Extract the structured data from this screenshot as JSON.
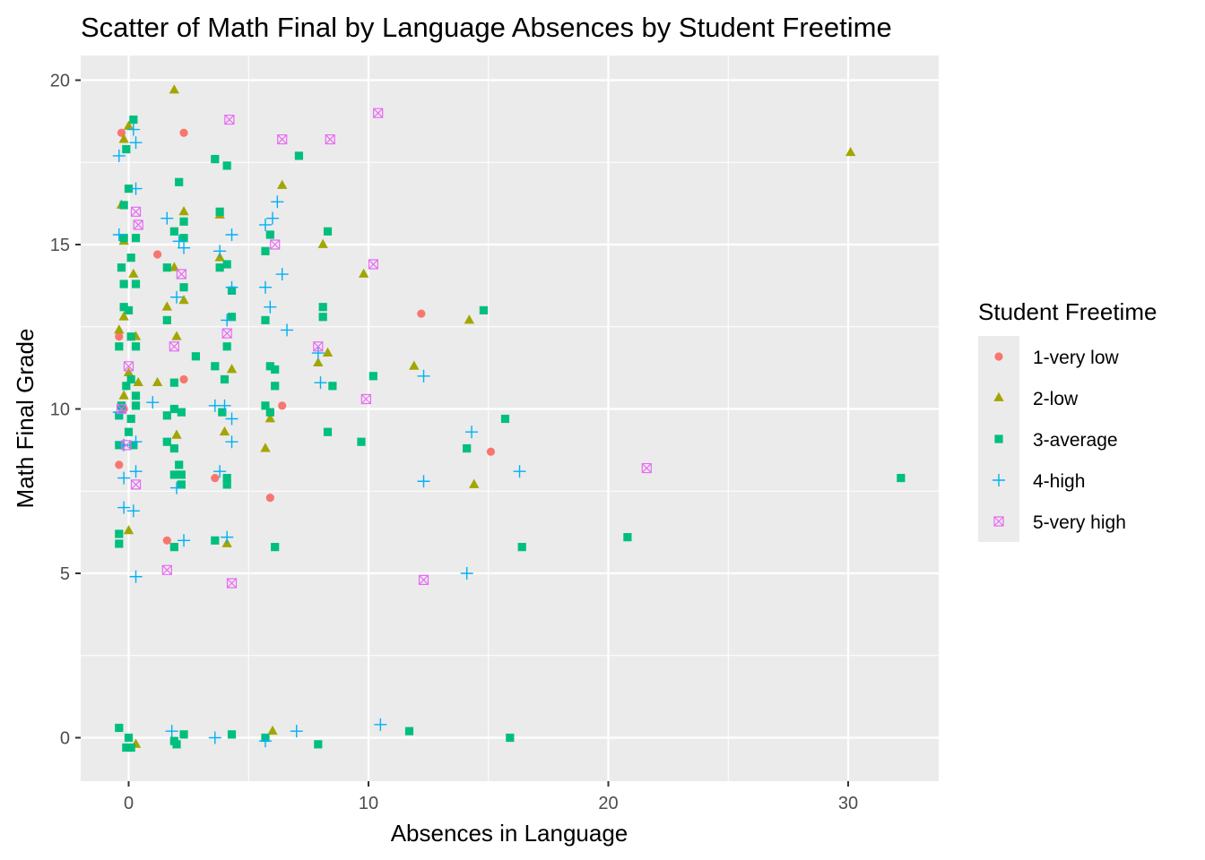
{
  "chart_data": {
    "type": "scatter",
    "title": "Scatter of Math Final by Language Absences by Student Freetime",
    "xlabel": "Absences in Language",
    "ylabel": "Math Final Grade",
    "xlim": [
      -2,
      34
    ],
    "ylim": [
      -1.3,
      20.8
    ],
    "x_ticks": [
      0,
      10,
      20,
      30
    ],
    "y_ticks": [
      0,
      5,
      10,
      15,
      20
    ],
    "x_tick_labels": [
      "0",
      "10",
      "20",
      "30"
    ],
    "y_tick_labels": [
      "0",
      "5",
      "10",
      "15",
      "20"
    ],
    "grid": true,
    "legend": {
      "title": "Student Freetime",
      "position": "right"
    },
    "series": [
      {
        "name": "1-very low",
        "color": "#F8766D",
        "shape": "circle",
        "points": [
          [
            -0.3,
            18.4
          ],
          [
            2.3,
            18.4
          ],
          [
            1.2,
            14.7
          ],
          [
            -0.4,
            12.2
          ],
          [
            12.2,
            12.9
          ],
          [
            2.3,
            10.9
          ],
          [
            6.4,
            10.1
          ],
          [
            -0.2,
            10.0
          ],
          [
            15.1,
            8.7
          ],
          [
            -0.4,
            8.3
          ],
          [
            3.6,
            7.9
          ],
          [
            5.9,
            7.3
          ],
          [
            1.6,
            6.0
          ]
        ]
      },
      {
        "name": "2-low",
        "color": "#A3A500",
        "shape": "triangle",
        "points": [
          [
            1.9,
            19.7
          ],
          [
            30.1,
            17.8
          ],
          [
            0.0,
            18.6
          ],
          [
            -0.2,
            18.2
          ],
          [
            6.4,
            16.8
          ],
          [
            -0.3,
            16.2
          ],
          [
            2.3,
            16.0
          ],
          [
            3.8,
            15.9
          ],
          [
            -0.2,
            15.1
          ],
          [
            8.1,
            15.0
          ],
          [
            0.2,
            14.1
          ],
          [
            1.9,
            14.3
          ],
          [
            9.8,
            14.1
          ],
          [
            3.8,
            14.6
          ],
          [
            1.6,
            13.1
          ],
          [
            2.3,
            13.3
          ],
          [
            -0.4,
            12.4
          ],
          [
            14.2,
            12.7
          ],
          [
            -0.2,
            12.8
          ],
          [
            2.0,
            12.2
          ],
          [
            0.3,
            12.2
          ],
          [
            8.3,
            11.7
          ],
          [
            7.9,
            11.4
          ],
          [
            11.9,
            11.3
          ],
          [
            4.3,
            11.2
          ],
          [
            0.0,
            11.1
          ],
          [
            1.2,
            10.8
          ],
          [
            0.4,
            10.8
          ],
          [
            -0.2,
            10.4
          ],
          [
            5.9,
            9.7
          ],
          [
            4.0,
            9.3
          ],
          [
            2.0,
            9.2
          ],
          [
            5.7,
            8.8
          ],
          [
            14.4,
            7.7
          ],
          [
            0.0,
            6.3
          ],
          [
            4.1,
            5.9
          ],
          [
            6.0,
            0.2
          ],
          [
            0.3,
            -0.2
          ]
        ]
      },
      {
        "name": "3-average",
        "color": "#00BF7D",
        "shape": "square",
        "points": [
          [
            0.2,
            18.8
          ],
          [
            -0.1,
            17.9
          ],
          [
            3.6,
            17.6
          ],
          [
            7.1,
            17.7
          ],
          [
            4.1,
            17.4
          ],
          [
            2.1,
            16.9
          ],
          [
            0.0,
            16.7
          ],
          [
            -0.2,
            16.2
          ],
          [
            3.8,
            16.0
          ],
          [
            2.3,
            15.7
          ],
          [
            1.9,
            15.4
          ],
          [
            8.3,
            15.4
          ],
          [
            -0.2,
            15.2
          ],
          [
            0.3,
            15.2
          ],
          [
            2.3,
            15.2
          ],
          [
            5.9,
            15.3
          ],
          [
            5.7,
            14.8
          ],
          [
            0.1,
            14.6
          ],
          [
            4.1,
            14.4
          ],
          [
            -0.3,
            14.3
          ],
          [
            1.6,
            14.3
          ],
          [
            -0.2,
            13.8
          ],
          [
            0.3,
            13.8
          ],
          [
            3.8,
            14.3
          ],
          [
            4.3,
            13.6
          ],
          [
            2.3,
            13.7
          ],
          [
            0.0,
            13.0
          ],
          [
            8.1,
            13.1
          ],
          [
            -0.2,
            13.1
          ],
          [
            14.8,
            13.0
          ],
          [
            1.6,
            12.7
          ],
          [
            4.3,
            12.8
          ],
          [
            5.7,
            12.7
          ],
          [
            8.1,
            12.8
          ],
          [
            0.1,
            12.2
          ],
          [
            -0.4,
            11.9
          ],
          [
            0.3,
            11.9
          ],
          [
            4.1,
            11.9
          ],
          [
            2.8,
            11.6
          ],
          [
            3.6,
            11.3
          ],
          [
            5.9,
            11.3
          ],
          [
            6.1,
            11.2
          ],
          [
            0.1,
            10.9
          ],
          [
            1.9,
            10.8
          ],
          [
            10.2,
            11.0
          ],
          [
            4.0,
            10.9
          ],
          [
            6.1,
            10.7
          ],
          [
            8.5,
            10.7
          ],
          [
            -0.1,
            10.7
          ],
          [
            0.3,
            10.4
          ],
          [
            -0.3,
            10.1
          ],
          [
            5.7,
            10.1
          ],
          [
            0.3,
            10.1
          ],
          [
            1.9,
            10.0
          ],
          [
            2.2,
            9.9
          ],
          [
            3.9,
            9.9
          ],
          [
            -0.4,
            9.8
          ],
          [
            0.1,
            9.7
          ],
          [
            1.6,
            9.8
          ],
          [
            15.7,
            9.7
          ],
          [
            5.9,
            9.9
          ],
          [
            0.0,
            9.3
          ],
          [
            8.3,
            9.3
          ],
          [
            1.6,
            9.0
          ],
          [
            9.7,
            9.0
          ],
          [
            14.1,
            8.8
          ],
          [
            1.9,
            8.8
          ],
          [
            2.1,
            8.3
          ],
          [
            -0.4,
            8.9
          ],
          [
            0.2,
            8.9
          ],
          [
            2.2,
            8.0
          ],
          [
            1.9,
            8.0
          ],
          [
            4.1,
            7.9
          ],
          [
            32.2,
            7.9
          ],
          [
            2.2,
            7.7
          ],
          [
            4.1,
            7.7
          ],
          [
            20.8,
            6.1
          ],
          [
            -0.4,
            6.2
          ],
          [
            3.6,
            6.0
          ],
          [
            -0.4,
            5.9
          ],
          [
            1.9,
            5.8
          ],
          [
            6.1,
            5.8
          ],
          [
            16.4,
            5.8
          ],
          [
            -0.4,
            0.3
          ],
          [
            0.0,
            0.0
          ],
          [
            2.3,
            0.1
          ],
          [
            4.3,
            0.1
          ],
          [
            5.7,
            0.0
          ],
          [
            11.7,
            0.2
          ],
          [
            1.9,
            -0.1
          ],
          [
            0.1,
            -0.3
          ],
          [
            2.0,
            -0.2
          ],
          [
            7.9,
            -0.2
          ],
          [
            15.9,
            0.0
          ],
          [
            -0.1,
            -0.3
          ]
        ]
      },
      {
        "name": "4-high",
        "color": "#00B0F6",
        "shape": "plus",
        "points": [
          [
            0.2,
            18.5
          ],
          [
            0.3,
            18.1
          ],
          [
            -0.4,
            17.7
          ],
          [
            0.3,
            16.7
          ],
          [
            6.2,
            16.3
          ],
          [
            6.0,
            15.8
          ],
          [
            1.6,
            15.8
          ],
          [
            2.1,
            15.1
          ],
          [
            -0.4,
            15.3
          ],
          [
            4.3,
            15.3
          ],
          [
            5.7,
            15.6
          ],
          [
            2.3,
            14.9
          ],
          [
            3.8,
            14.8
          ],
          [
            6.4,
            14.1
          ],
          [
            5.7,
            13.7
          ],
          [
            4.3,
            13.7
          ],
          [
            2.0,
            13.4
          ],
          [
            5.9,
            13.1
          ],
          [
            4.1,
            12.7
          ],
          [
            6.6,
            12.4
          ],
          [
            7.9,
            11.7
          ],
          [
            12.3,
            11.0
          ],
          [
            8.0,
            10.8
          ],
          [
            3.6,
            10.1
          ],
          [
            4.0,
            10.1
          ],
          [
            1.0,
            10.2
          ],
          [
            -0.4,
            9.9
          ],
          [
            -0.2,
            8.9
          ],
          [
            0.3,
            9.0
          ],
          [
            4.3,
            9.0
          ],
          [
            14.3,
            9.3
          ],
          [
            4.3,
            9.7
          ],
          [
            0.3,
            8.1
          ],
          [
            -0.2,
            7.9
          ],
          [
            16.3,
            8.1
          ],
          [
            12.3,
            7.8
          ],
          [
            3.8,
            8.1
          ],
          [
            2.0,
            7.6
          ],
          [
            -0.2,
            7.0
          ],
          [
            0.2,
            6.9
          ],
          [
            2.3,
            6.0
          ],
          [
            4.1,
            6.1
          ],
          [
            14.1,
            5.0
          ],
          [
            0.3,
            4.9
          ],
          [
            1.8,
            0.2
          ],
          [
            3.6,
            0.0
          ],
          [
            7.0,
            0.2
          ],
          [
            10.5,
            0.4
          ],
          [
            5.7,
            -0.1
          ]
        ]
      },
      {
        "name": "5-very high",
        "color": "#E76BF3",
        "shape": "square-x",
        "points": [
          [
            10.4,
            19.0
          ],
          [
            4.2,
            18.8
          ],
          [
            6.4,
            18.2
          ],
          [
            8.4,
            18.2
          ],
          [
            0.3,
            16.0
          ],
          [
            0.4,
            15.6
          ],
          [
            6.1,
            15.0
          ],
          [
            10.2,
            14.4
          ],
          [
            2.2,
            14.1
          ],
          [
            4.1,
            12.3
          ],
          [
            7.9,
            11.9
          ],
          [
            1.9,
            11.9
          ],
          [
            0.0,
            11.3
          ],
          [
            9.9,
            10.3
          ],
          [
            -0.3,
            10.0
          ],
          [
            -0.1,
            8.9
          ],
          [
            0.3,
            7.7
          ],
          [
            21.6,
            8.2
          ],
          [
            1.6,
            5.1
          ],
          [
            4.3,
            4.7
          ],
          [
            12.3,
            4.8
          ]
        ]
      }
    ]
  }
}
